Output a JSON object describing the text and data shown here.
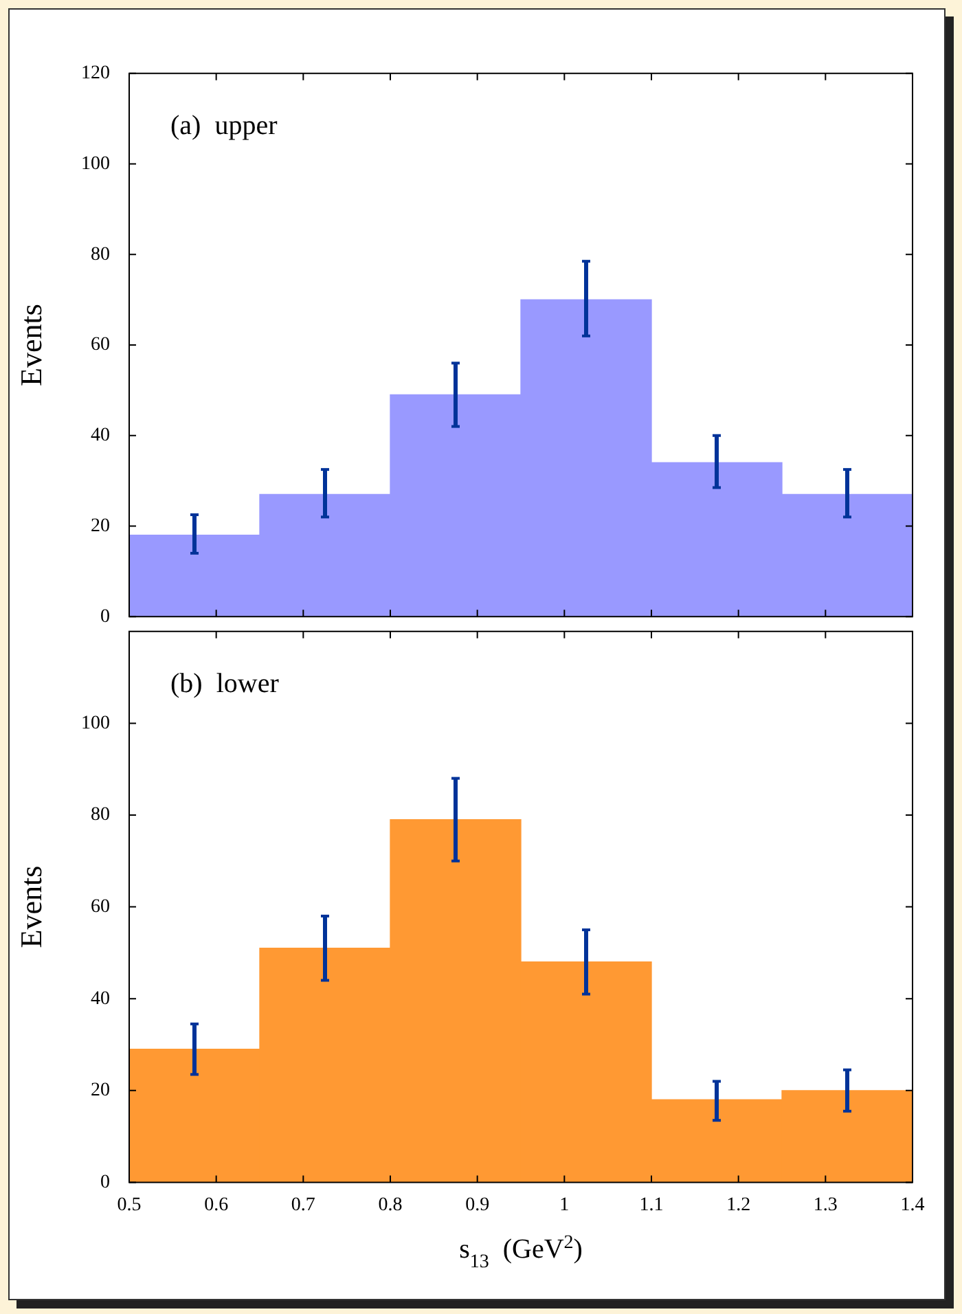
{
  "chart_data": [
    {
      "type": "histogram",
      "ylabel": "Events",
      "annotations": [
        "(a)  upper"
      ],
      "bins": [
        0.5,
        0.65,
        0.8,
        0.95,
        1.1,
        1.25,
        1.4
      ],
      "values": [
        18,
        27,
        49,
        70,
        34,
        27
      ],
      "errors": [
        [
          14,
          22.5
        ],
        [
          22,
          32.5
        ],
        [
          42,
          56
        ],
        [
          62,
          78.5
        ],
        [
          28.5,
          40
        ],
        [
          22,
          32.5
        ]
      ],
      "color": "#9999ff",
      "xlim": [
        0.5,
        1.4
      ],
      "xticks": [
        0.5,
        0.6,
        0.7,
        0.8,
        0.9,
        1,
        1.1,
        1.2,
        1.3,
        1.4
      ],
      "ylim": [
        0,
        120
      ],
      "yticks": [
        0,
        20,
        40,
        60,
        80,
        100,
        120
      ],
      "tick_labels": "y"
    },
    {
      "type": "histogram",
      "xlabel": "s$_{13}$  (GeV$^{2}$)",
      "ylabel": "Events",
      "annotations": [
        "(b)  lower"
      ],
      "bins": [
        0.5,
        0.65,
        0.8,
        0.95,
        1.1,
        1.25,
        1.4
      ],
      "values": [
        29,
        51,
        79,
        48,
        18,
        20
      ],
      "errors": [
        [
          23.5,
          34.5
        ],
        [
          44,
          58
        ],
        [
          70,
          88
        ],
        [
          41,
          55
        ],
        [
          13.5,
          22
        ],
        [
          15.5,
          24.5
        ]
      ],
      "color": "#ff9933",
      "xlim": [
        0.5,
        1.4
      ],
      "xticks": [
        0.5,
        0.6,
        0.7,
        0.8,
        0.9,
        1,
        1.1,
        1.2,
        1.3,
        1.4
      ],
      "ylim": [
        0,
        120
      ],
      "yticks": [
        0,
        20,
        40,
        60,
        80,
        100
      ]
    }
  ]
}
